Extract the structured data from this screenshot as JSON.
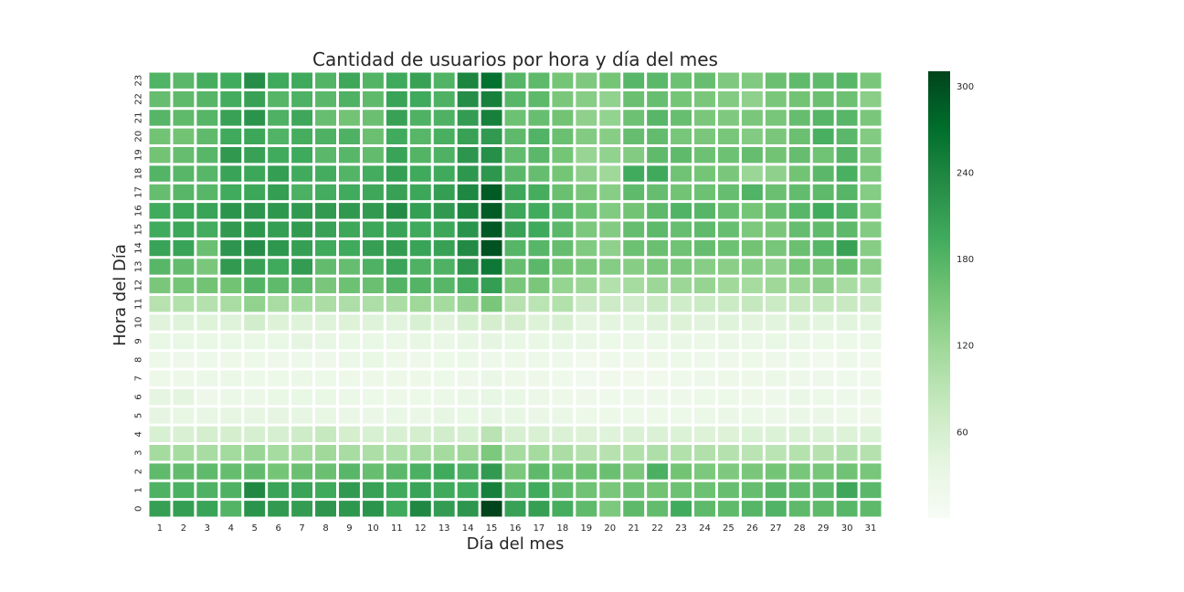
{
  "chart_data": {
    "type": "heatmap",
    "title": "Cantidad de usuarios por hora y día del mes",
    "xlabel": "Día del mes",
    "ylabel": "Hora del Día",
    "x_categories": [
      "1",
      "2",
      "3",
      "4",
      "5",
      "6",
      "7",
      "8",
      "9",
      "10",
      "11",
      "12",
      "13",
      "14",
      "15",
      "16",
      "17",
      "18",
      "19",
      "20",
      "21",
      "22",
      "23",
      "24",
      "25",
      "26",
      "27",
      "28",
      "29",
      "30",
      "31"
    ],
    "y_categories": [
      "0",
      "1",
      "2",
      "3",
      "4",
      "5",
      "6",
      "7",
      "8",
      "9",
      "10",
      "11",
      "12",
      "13",
      "14",
      "15",
      "16",
      "17",
      "18",
      "19",
      "20",
      "21",
      "22",
      "23"
    ],
    "colorbar": {
      "min": 0,
      "max": 310,
      "ticks": [
        60,
        120,
        180,
        240,
        300
      ],
      "colormap": "Greens"
    },
    "values": [
      [
        208,
        210,
        204,
        180,
        222,
        214,
        212,
        220,
        218,
        222,
        196,
        236,
        212,
        220,
        310,
        206,
        208,
        190,
        170,
        148,
        172,
        168,
        194,
        172,
        170,
        178,
        182,
        172,
        172,
        176,
        172
      ],
      [
        184,
        186,
        184,
        184,
        236,
        204,
        204,
        196,
        214,
        206,
        196,
        204,
        196,
        194,
        246,
        184,
        194,
        172,
        158,
        150,
        160,
        156,
        160,
        160,
        164,
        166,
        176,
        170,
        174,
        198,
        174
      ],
      [
        170,
        168,
        170,
        166,
        168,
        154,
        162,
        162,
        176,
        164,
        174,
        186,
        196,
        184,
        214,
        148,
        172,
        160,
        160,
        162,
        148,
        186,
        156,
        148,
        146,
        150,
        154,
        152,
        152,
        158,
        152
      ],
      [
        112,
        110,
        108,
        114,
        122,
        110,
        112,
        116,
        108,
        104,
        102,
        108,
        112,
        116,
        148,
        110,
        112,
        106,
        94,
        94,
        98,
        102,
        98,
        100,
        96,
        90,
        90,
        96,
        94,
        102,
        96
      ],
      [
        56,
        54,
        60,
        60,
        58,
        58,
        68,
        78,
        60,
        56,
        56,
        60,
        64,
        56,
        92,
        56,
        54,
        52,
        48,
        46,
        52,
        52,
        50,
        48,
        48,
        50,
        50,
        52,
        50,
        48,
        50
      ],
      [
        36,
        32,
        32,
        34,
        34,
        36,
        34,
        32,
        28,
        28,
        30,
        28,
        34,
        30,
        34,
        32,
        28,
        28,
        24,
        24,
        24,
        24,
        24,
        26,
        28,
        26,
        26,
        28,
        28,
        24,
        22
      ],
      [
        36,
        40,
        20,
        26,
        26,
        30,
        30,
        30,
        26,
        24,
        22,
        24,
        26,
        28,
        32,
        30,
        26,
        22,
        20,
        18,
        20,
        20,
        20,
        24,
        24,
        22,
        20,
        28,
        24,
        20,
        22
      ],
      [
        22,
        22,
        26,
        26,
        24,
        24,
        26,
        24,
        22,
        22,
        22,
        22,
        24,
        20,
        28,
        22,
        22,
        18,
        14,
        16,
        16,
        16,
        18,
        20,
        22,
        22,
        26,
        20,
        20,
        18,
        18
      ],
      [
        22,
        20,
        22,
        22,
        22,
        20,
        20,
        20,
        26,
        30,
        22,
        20,
        24,
        26,
        20,
        22,
        24,
        20,
        16,
        18,
        18,
        22,
        24,
        20,
        20,
        22,
        20,
        20,
        16,
        20,
        18
      ],
      [
        30,
        30,
        30,
        30,
        30,
        30,
        36,
        32,
        30,
        30,
        26,
        32,
        28,
        32,
        36,
        30,
        30,
        32,
        28,
        24,
        26,
        26,
        28,
        26,
        28,
        26,
        30,
        26,
        24,
        24,
        26
      ],
      [
        44,
        46,
        46,
        46,
        64,
        48,
        46,
        46,
        48,
        46,
        42,
        56,
        44,
        56,
        60,
        60,
        48,
        56,
        36,
        40,
        40,
        46,
        48,
        44,
        46,
        42,
        42,
        46,
        40,
        42,
        40
      ],
      [
        94,
        98,
        96,
        108,
        130,
        108,
        110,
        106,
        104,
        104,
        106,
        118,
        112,
        124,
        150,
        94,
        90,
        98,
        70,
        70,
        64,
        74,
        66,
        72,
        72,
        80,
        72,
        76,
        80,
        76,
        70
      ],
      [
        150,
        154,
        156,
        156,
        180,
        170,
        170,
        150,
        160,
        162,
        180,
        180,
        176,
        190,
        210,
        150,
        150,
        126,
        120,
        98,
        110,
        120,
        120,
        126,
        116,
        110,
        118,
        120,
        132,
        108,
        102
      ],
      [
        176,
        168,
        150,
        214,
        206,
        196,
        212,
        168,
        166,
        184,
        202,
        184,
        184,
        220,
        256,
        166,
        174,
        156,
        148,
        140,
        138,
        148,
        148,
        138,
        136,
        138,
        132,
        152,
        152,
        162,
        136
      ],
      [
        204,
        204,
        162,
        220,
        230,
        218,
        208,
        196,
        196,
        208,
        212,
        204,
        206,
        234,
        296,
        178,
        176,
        166,
        144,
        132,
        160,
        162,
        158,
        166,
        160,
        156,
        152,
        162,
        176,
        206,
        138
      ],
      [
        194,
        200,
        192,
        216,
        218,
        210,
        214,
        206,
        198,
        200,
        204,
        196,
        200,
        222,
        290,
        206,
        196,
        174,
        148,
        142,
        166,
        172,
        164,
        170,
        164,
        148,
        150,
        166,
        170,
        172,
        142
      ],
      [
        194,
        200,
        204,
        222,
        220,
        218,
        216,
        214,
        216,
        214,
        232,
        210,
        216,
        240,
        288,
        200,
        194,
        178,
        160,
        144,
        156,
        172,
        182,
        178,
        164,
        154,
        164,
        176,
        194,
        184,
        148
      ],
      [
        166,
        176,
        176,
        194,
        200,
        210,
        186,
        192,
        194,
        198,
        206,
        200,
        210,
        238,
        288,
        198,
        190,
        162,
        150,
        138,
        170,
        166,
        156,
        160,
        166,
        182,
        162,
        168,
        172,
        178,
        140
      ],
      [
        180,
        176,
        176,
        204,
        200,
        210,
        194,
        192,
        180,
        192,
        210,
        196,
        196,
        218,
        218,
        174,
        166,
        154,
        132,
        118,
        194,
        196,
        158,
        154,
        150,
        122,
        132,
        156,
        174,
        188,
        148
      ],
      [
        156,
        166,
        176,
        216,
        206,
        194,
        196,
        174,
        176,
        168,
        204,
        180,
        184,
        220,
        228,
        168,
        174,
        154,
        124,
        130,
        142,
        170,
        170,
        160,
        160,
        166,
        156,
        166,
        158,
        178,
        146
      ],
      [
        156,
        156,
        170,
        196,
        200,
        182,
        190,
        184,
        184,
        162,
        194,
        176,
        188,
        206,
        214,
        172,
        182,
        162,
        142,
        138,
        166,
        168,
        152,
        150,
        152,
        142,
        150,
        162,
        188,
        174,
        142
      ],
      [
        178,
        170,
        178,
        206,
        222,
        184,
        198,
        164,
        156,
        162,
        206,
        184,
        184,
        212,
        246,
        160,
        164,
        156,
        132,
        128,
        160,
        176,
        164,
        150,
        146,
        150,
        152,
        166,
        178,
        176,
        150
      ],
      [
        166,
        170,
        178,
        192,
        206,
        178,
        184,
        174,
        184,
        170,
        204,
        196,
        184,
        230,
        246,
        176,
        172,
        150,
        138,
        130,
        162,
        164,
        154,
        150,
        142,
        132,
        150,
        156,
        162,
        160,
        136
      ],
      [
        182,
        174,
        190,
        194,
        230,
        196,
        196,
        180,
        198,
        180,
        196,
        206,
        182,
        240,
        266,
        178,
        172,
        154,
        146,
        154,
        176,
        174,
        160,
        164,
        146,
        144,
        162,
        170,
        170,
        176,
        150
      ]
    ]
  }
}
